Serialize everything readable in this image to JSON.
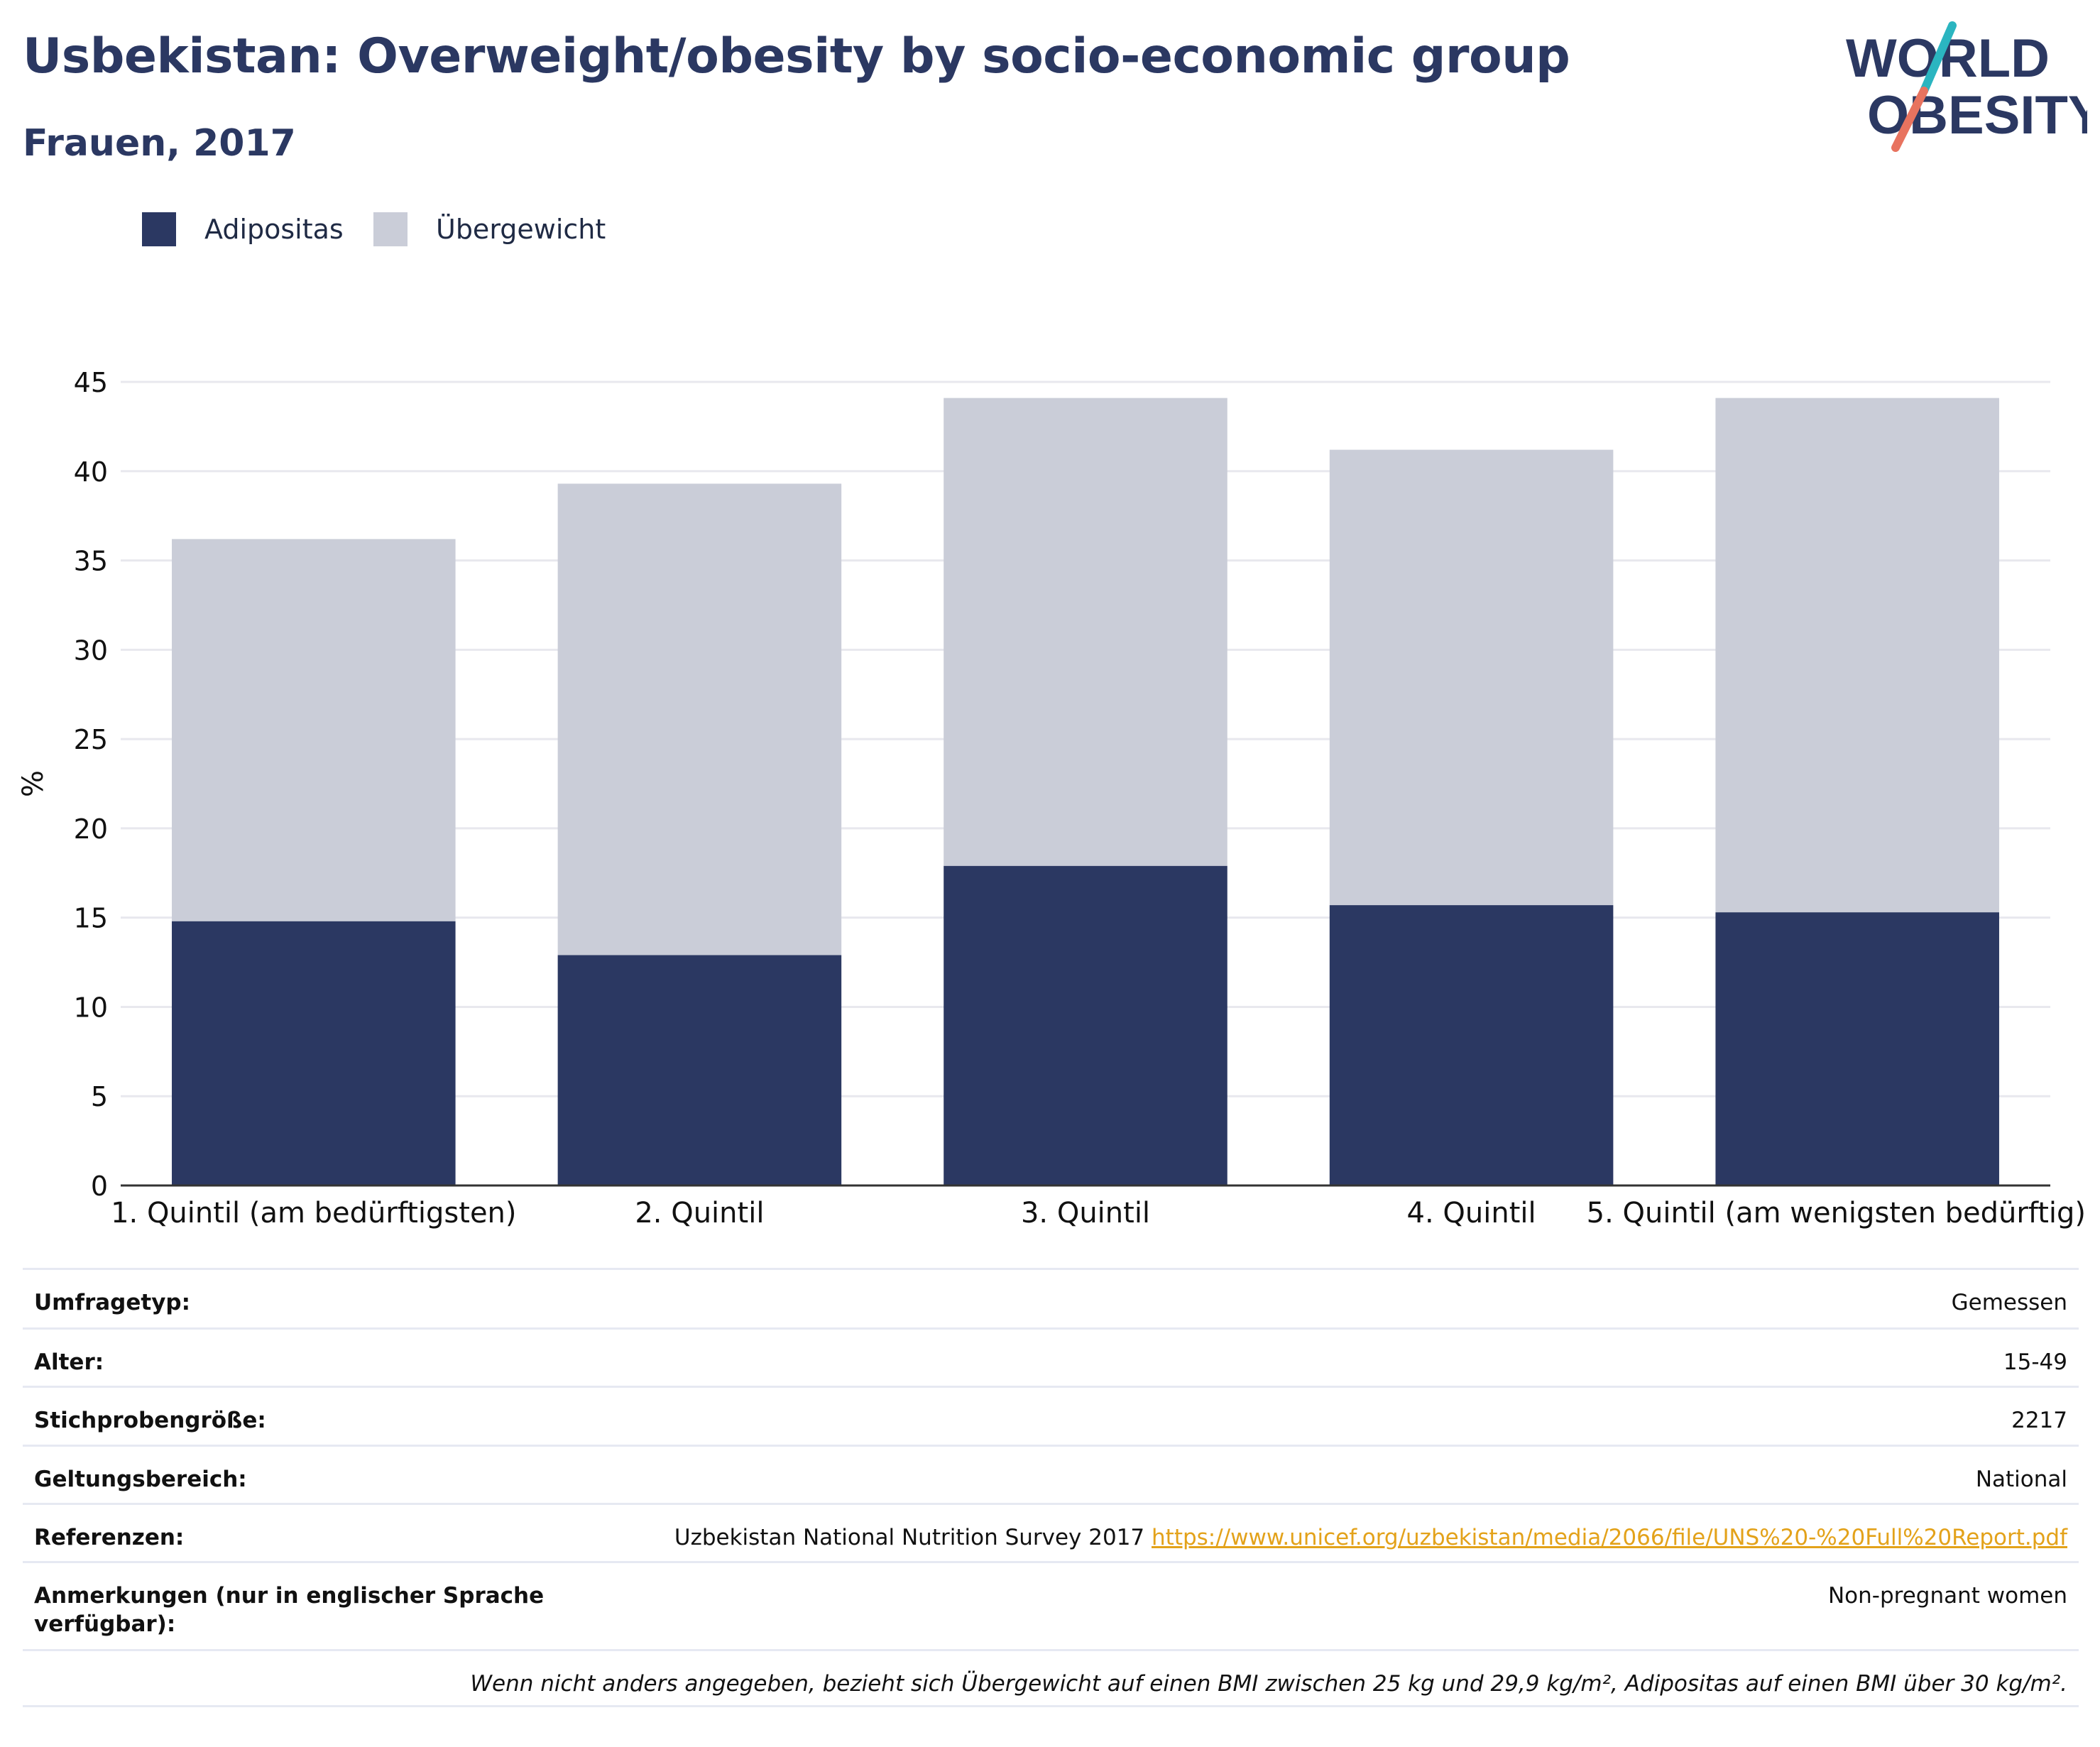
{
  "title": "Usbekistan: Overweight/obesity by socio-economic group",
  "subtitle": "Frauen, 2017",
  "logo": {
    "line1": "WORLD",
    "line2": "OBESITY",
    "color_text": "#2b3862",
    "color_slash_top": "#2bb5c0",
    "color_slash_bottom": "#e8735f"
  },
  "legend": [
    {
      "label": "Adipositas",
      "color": "#2b3862"
    },
    {
      "label": "Übergewicht",
      "color": "#cacdd8"
    }
  ],
  "chart_data": {
    "type": "bar",
    "stacked": true,
    "title": "",
    "xlabel": "",
    "ylabel": "%",
    "ylim": [
      0,
      45
    ],
    "yticks": [
      0,
      5,
      10,
      15,
      20,
      25,
      30,
      35,
      40,
      45
    ],
    "grid": true,
    "legend_position": "top-left",
    "categories": [
      "1. Quintil (am bedürftigsten)",
      "2. Quintil",
      "3. Quintil",
      "4. Quintil",
      "5. Quintil (am wenigsten bedürftig)"
    ],
    "series": [
      {
        "name": "Adipositas",
        "color": "#2b3862",
        "values": [
          14.8,
          12.9,
          17.9,
          15.7,
          15.3
        ]
      },
      {
        "name": "Übergewicht",
        "color": "#cacdd8",
        "values": [
          21.4,
          26.4,
          26.2,
          25.5,
          28.8
        ]
      }
    ]
  },
  "table": [
    {
      "label": "Umfragetyp:",
      "value": "Gemessen"
    },
    {
      "label": "Alter:",
      "value": "15-49"
    },
    {
      "label": "Stichprobengröße:",
      "value": "2217"
    },
    {
      "label": "Geltungsbereich:",
      "value": "National"
    },
    {
      "label": "Referenzen:",
      "value": "Uzbekistan National Nutrition Survey 2017",
      "link": "https://www.unicef.org/uzbekistan/media/2066/file/UNS%20-%20Full%20Report.pdf"
    },
    {
      "label": "Anmerkungen (nur in englischer Sprache verfügbar):",
      "value": "Non-pregnant women"
    }
  ],
  "footnote": "Wenn nicht anders angegeben, bezieht sich Übergewicht auf einen BMI zwischen 25 kg und 29,9 kg/m², Adipositas auf einen BMI über 30 kg/m²."
}
